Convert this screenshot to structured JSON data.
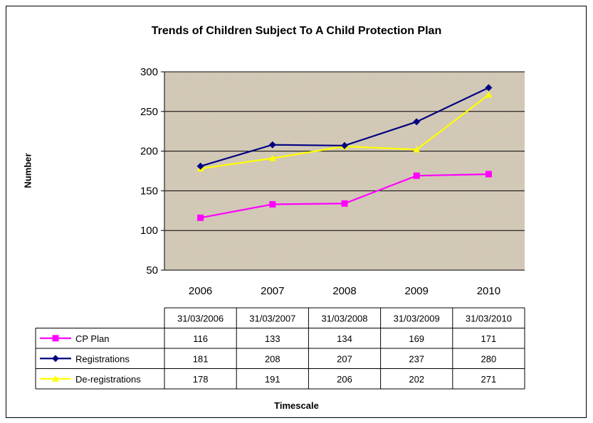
{
  "chart_data": {
    "type": "line",
    "title": "Trends of Children Subject To A Child Protection Plan",
    "xlabel": "Timescale",
    "ylabel": "Number",
    "categories": [
      "2006",
      "2007",
      "2008",
      "2009",
      "2010"
    ],
    "table_headers": [
      "31/03/2006",
      "31/03/2007",
      "31/03/2008",
      "31/03/2009",
      "31/03/2010"
    ],
    "ylim": [
      50,
      300
    ],
    "yticks": [
      50,
      100,
      150,
      200,
      250,
      300
    ],
    "grid": true,
    "series": [
      {
        "name": "CP Plan",
        "color": "#ff00ff",
        "marker": "square",
        "values": [
          116,
          133,
          134,
          169,
          171
        ]
      },
      {
        "name": "Registrations",
        "color": "#000080",
        "marker": "diamond",
        "values": [
          181,
          208,
          207,
          237,
          280
        ]
      },
      {
        "name": "De-registrations",
        "color": "#ffff00",
        "marker": "triangle",
        "values": [
          178,
          191,
          206,
          202,
          271
        ]
      }
    ],
    "plot_background": "textured beige"
  }
}
